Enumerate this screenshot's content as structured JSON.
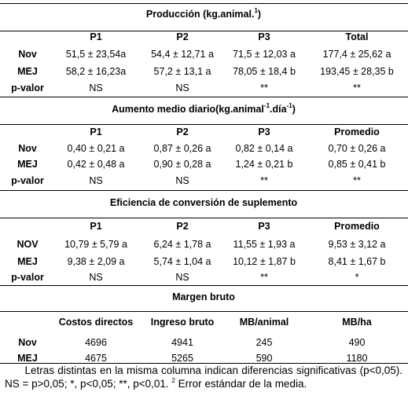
{
  "top_partial": "",
  "sections": [
    {
      "title_pre": "Producción (kg.animal.",
      "title_sup1": "1",
      "title_mid": ")",
      "title_sup2": "",
      "title_post": "",
      "headers": [
        "",
        "P1",
        "P2",
        "P3",
        "Total"
      ],
      "rows": [
        [
          "Nov",
          "51,5 ± 23,54a",
          "54,4 ± 12,71 a",
          "71,5 ± 12,03 a",
          "177,4 ± 25,62 a"
        ],
        [
          "MEJ",
          "58,2 ± 16,23a",
          "57,2 ± 13,1 a",
          "78,05 ± 18,4 b",
          "193,45 ± 28,35 b"
        ],
        [
          "p-valor",
          "NS",
          "NS",
          "**",
          "**"
        ]
      ]
    },
    {
      "title_pre": "Aumento medio diario(kg.animal",
      "title_sup1": "-1",
      "title_mid": ".día",
      "title_sup2": "-1",
      "title_post": ")",
      "headers": [
        "",
        "P1",
        "P2",
        "P3",
        "Promedio"
      ],
      "rows": [
        [
          "Nov",
          "0,40 ± 0,21 a",
          "0,87 ± 0,26 a",
          "0,82 ± 0,14 a",
          "0,70 ± 0,26 a"
        ],
        [
          "MEJ",
          "0,42 ± 0,48 a",
          "0,90 ± 0,28 a",
          "1,24 ± 0,21 b",
          "0,85 ± 0,41 b"
        ],
        [
          "p-valor",
          "NS",
          "NS",
          "**",
          "**"
        ]
      ]
    },
    {
      "title_pre": "Eficiencia de conversión de suplemento",
      "title_sup1": "",
      "title_mid": "",
      "title_sup2": "",
      "title_post": "",
      "headers": [
        "",
        "P1",
        "P2",
        "P3",
        "Promedio"
      ],
      "rows": [
        [
          "NOV",
          "10,79 ± 5,79 a",
          "6,24 ± 1,78 a",
          "11,55 ± 1,93 a",
          "9,53 ± 3,12 a"
        ],
        [
          "MEJ",
          "9,38 ± 2,09 a",
          "5,74 ± 1,04 a",
          "10,12 ± 1,87 b",
          "8,41 ± 1,67 b"
        ],
        [
          "p-valor",
          "NS",
          "NS",
          "**",
          "*"
        ]
      ]
    },
    {
      "title_pre": "Margen bruto",
      "title_sup1": "",
      "title_mid": "",
      "title_sup2": "",
      "title_post": "",
      "headers": [
        "",
        "Costos directos",
        "Ingreso bruto",
        "MB/animal",
        "MB/ha"
      ],
      "rows": [
        [
          "Nov",
          "4696",
          "4941",
          "245",
          "490"
        ],
        [
          "MEJ",
          "4675",
          "5265",
          "590",
          "1180"
        ]
      ]
    }
  ],
  "footnote": {
    "pre": "Letras distintas en la misma columna indican diferencias significativas (p<0,05). NS = p>0,05; *, p<0,05; **, p<0,01. ",
    "sup": "2",
    "post": " Error estándar de la media."
  }
}
